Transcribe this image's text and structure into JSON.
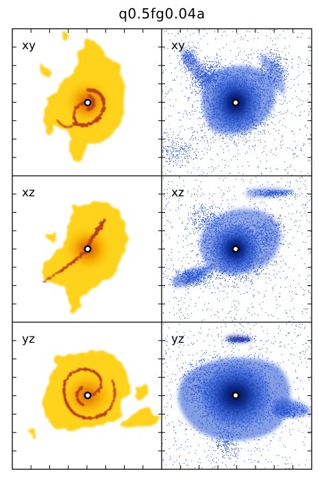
{
  "title": "q0.5fg0.04a",
  "chart_data": {
    "type": "image-grid",
    "title": "q0.5fg0.04a",
    "rows": 3,
    "columns": 2,
    "panels": [
      {
        "row": 0,
        "col": 0,
        "label": "xy",
        "kind": "gas-density-map",
        "colormap": "yellow-orange-red"
      },
      {
        "row": 0,
        "col": 1,
        "label": "xy",
        "kind": "stellar-particle-map",
        "color": "#1f4fcf"
      },
      {
        "row": 1,
        "col": 0,
        "label": "xz",
        "kind": "gas-density-map",
        "colormap": "yellow-orange-red"
      },
      {
        "row": 1,
        "col": 1,
        "label": "xz",
        "kind": "stellar-particle-map",
        "color": "#1f4fcf"
      },
      {
        "row": 2,
        "col": 0,
        "label": "yz",
        "kind": "gas-density-map",
        "colormap": "yellow-orange-red"
      },
      {
        "row": 2,
        "col": 1,
        "label": "yz",
        "kind": "stellar-particle-map",
        "color": "#1f4fcf"
      }
    ],
    "center_marker": "white-dot-black-ring",
    "axis_tick_labels": false,
    "grid": false
  },
  "colors": {
    "gas_outer": "#ffd21a",
    "gas_mid": "#f5a500",
    "gas_arm": "#b8401a",
    "stars": "#1f4fcf",
    "stars_core": "#061a63"
  }
}
